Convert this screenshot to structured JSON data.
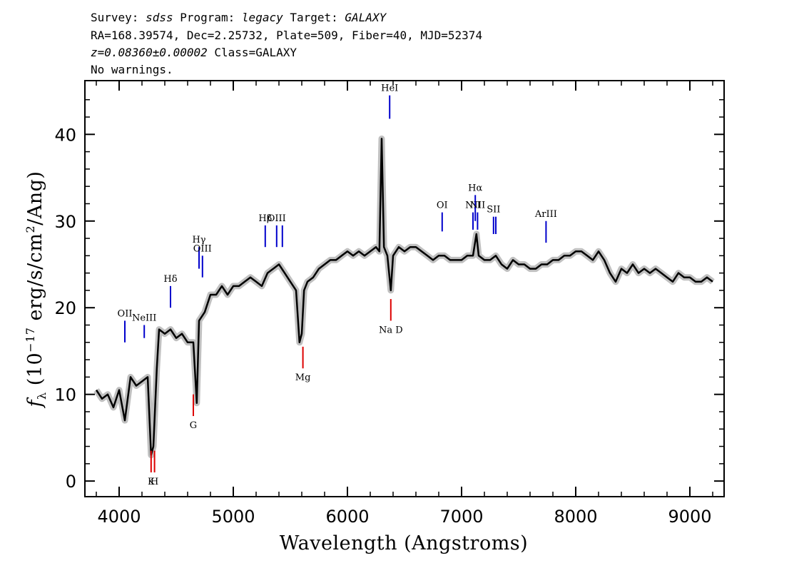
{
  "header": {
    "line1_parts": [
      "Survey: ",
      "sdss",
      " Program: ",
      "legacy",
      " Target: ",
      "GALAXY"
    ],
    "line2": "RA=168.39574, Dec=2.25732, Plate=509, Fiber=40, MJD=52374",
    "line3_z": "z=0.08360±0.00002",
    "line3_class": " Class=GALAXY",
    "line4": "No warnings."
  },
  "chart_data": {
    "type": "line",
    "xlabel": "Wavelength (Angstroms)",
    "ylabel_parts": [
      "f",
      "λ",
      " (10",
      "−17",
      " erg/s/cm",
      "2",
      "/Ang)"
    ],
    "xlim": [
      3700,
      9300
    ],
    "ylim": [
      -1.8,
      46.2
    ],
    "xticks": [
      4000,
      5000,
      6000,
      7000,
      8000,
      9000
    ],
    "yticks": [
      0,
      10,
      20,
      30,
      40
    ],
    "grid": false,
    "colors": {
      "flux": "#000000",
      "noise_band": "#c0c0c0",
      "emission": "#0000cc",
      "absorption": "#dd0000"
    },
    "series": [
      {
        "x": [
          3800,
          3850,
          3900,
          3950,
          4000,
          4050,
          4100,
          4150,
          4200,
          4250,
          4280,
          4300,
          4330,
          4350,
          4400,
          4450,
          4500,
          4550,
          4600,
          4650,
          4680,
          4700,
          4750,
          4800,
          4850,
          4900,
          4950,
          5000,
          5050,
          5100,
          5150,
          5200,
          5250,
          5300,
          5350,
          5400,
          5450,
          5500,
          5550,
          5580,
          5600,
          5620,
          5650,
          5700,
          5750,
          5800,
          5850,
          5900,
          5950,
          6000,
          6050,
          6100,
          6150,
          6200,
          6250,
          6280,
          6300,
          6320,
          6350,
          6380,
          6400,
          6450,
          6500,
          6550,
          6600,
          6650,
          6700,
          6750,
          6800,
          6850,
          6900,
          6950,
          7000,
          7050,
          7100,
          7130,
          7150,
          7200,
          7250,
          7300,
          7350,
          7400,
          7450,
          7500,
          7550,
          7600,
          7650,
          7700,
          7750,
          7800,
          7850,
          7900,
          7950,
          8000,
          8050,
          8100,
          8150,
          8200,
          8250,
          8300,
          8350,
          8400,
          8450,
          8500,
          8550,
          8600,
          8650,
          8700,
          8750,
          8800,
          8850,
          8900,
          8950,
          9000,
          9050,
          9100,
          9150,
          9200
        ],
        "y": [
          10.5,
          9.5,
          10,
          8.5,
          10.5,
          7,
          12,
          11,
          11.5,
          12,
          3,
          4,
          13,
          17.5,
          17,
          17.5,
          16.5,
          17,
          16,
          16,
          9,
          18.5,
          19.5,
          21.5,
          21.5,
          22.5,
          21.5,
          22.5,
          22.5,
          23,
          23.5,
          23,
          22.5,
          24,
          24.5,
          25,
          24,
          23,
          22,
          16,
          17,
          22,
          23,
          23.5,
          24.5,
          25,
          25.5,
          25.5,
          26,
          26.5,
          26,
          26.5,
          26,
          26.5,
          27,
          26.5,
          39.5,
          27,
          26,
          22,
          26,
          27,
          26.5,
          27,
          27,
          26.5,
          26,
          25.5,
          26,
          26,
          25.5,
          25.5,
          25.5,
          26,
          26,
          28.5,
          26,
          25.5,
          25.5,
          26,
          25,
          24.5,
          25.5,
          25,
          25,
          24.5,
          24.5,
          25,
          25,
          25.5,
          25.5,
          26,
          26,
          26.5,
          26.5,
          26,
          25.5,
          26.5,
          25.5,
          24,
          23,
          24.5,
          24,
          25,
          24,
          24.5,
          24,
          24.5,
          24,
          23.5,
          23,
          24,
          23.5,
          23.5,
          23,
          23,
          23.5,
          23
        ]
      }
    ],
    "emission_lines": [
      {
        "label": "OII",
        "x": 4050,
        "y_range": [
          16,
          18.5
        ]
      },
      {
        "label": "NeIII",
        "x": 4220,
        "y_range": [
          16.5,
          18
        ]
      },
      {
        "label": "Hδ",
        "x": 4450,
        "y_range": [
          20,
          22.5
        ]
      },
      {
        "label": "Hγ",
        "x": 4700,
        "y_range": [
          24.5,
          27
        ]
      },
      {
        "label": "OIII",
        "x": 4730,
        "y_range": [
          23.5,
          26
        ]
      },
      {
        "label": "Hβ",
        "x": 5280,
        "y_range": [
          27,
          29.5
        ]
      },
      {
        "label": "OIII",
        "x": 5380,
        "y_range": [
          27,
          29.5
        ]
      },
      {
        "label": "OIII",
        "x": 5430,
        "y_range": [
          27,
          29.5
        ]
      },
      {
        "label": "HeI",
        "x": 6370,
        "y_range": [
          41.8,
          44.5
        ]
      },
      {
        "label": "OI",
        "x": 6830,
        "y_range": [
          28.8,
          31
        ]
      },
      {
        "label": "NII",
        "x": 7100,
        "y_range": [
          29,
          31
        ]
      },
      {
        "label": "Hα",
        "x": 7120,
        "y_range": [
          30,
          33
        ]
      },
      {
        "label": "NII",
        "x": 7140,
        "y_range": [
          29,
          31
        ]
      },
      {
        "label": "SII",
        "x": 7280,
        "y_range": [
          28.5,
          30.5
        ]
      },
      {
        "label": "SII",
        "x": 7300,
        "y_range": [
          28.5,
          30.5
        ]
      },
      {
        "label": "ArIII",
        "x": 7740,
        "y_range": [
          27.5,
          30
        ]
      }
    ],
    "absorption_lines": [
      {
        "label": "K",
        "x": 4280,
        "y_range": [
          1,
          3.5
        ]
      },
      {
        "label": "H",
        "x": 4310,
        "y_range": [
          1,
          3.5
        ]
      },
      {
        "label": "G",
        "x": 4650,
        "y_range": [
          7.5,
          10
        ]
      },
      {
        "label": "Mg",
        "x": 5610,
        "y_range": [
          13,
          15.5
        ]
      },
      {
        "label": "Na D",
        "x": 6380,
        "y_range": [
          18.5,
          21
        ]
      }
    ]
  }
}
